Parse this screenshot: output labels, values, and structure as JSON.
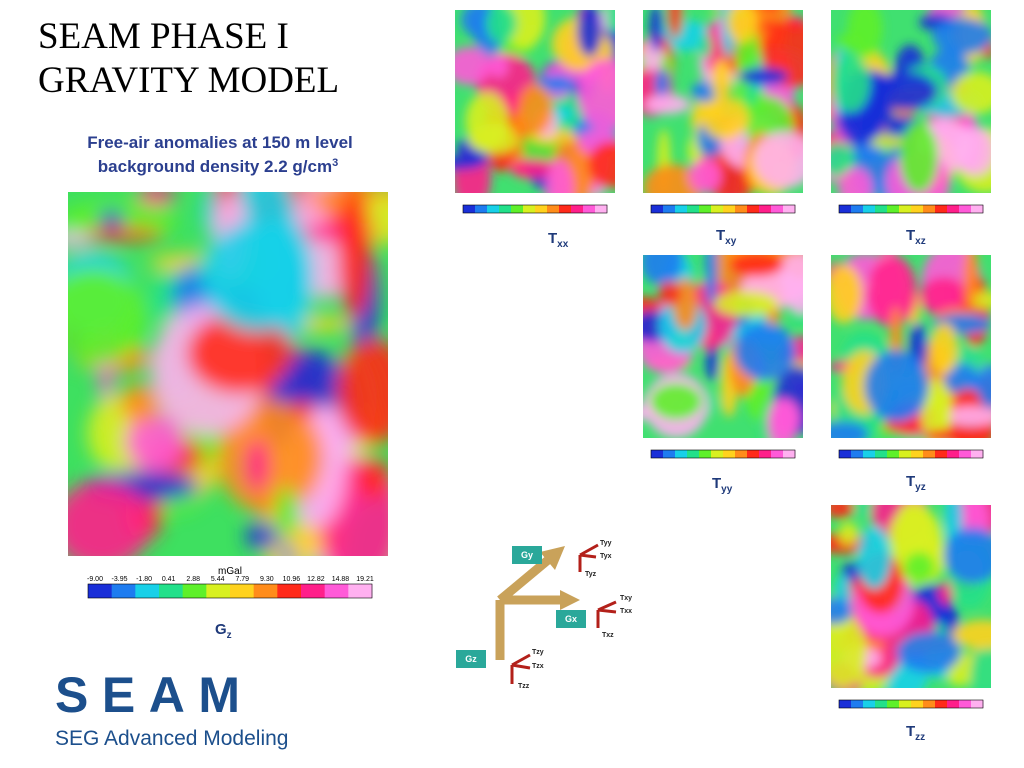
{
  "header": {
    "title_lines": [
      "SEAM PHASE I",
      "GRAVITY MODEL"
    ],
    "subtitle_line1": "Free-air anomalies at 150 m level",
    "subtitle_line2": {
      "text": "background density 2.2 g/cm",
      "sup": "3"
    }
  },
  "gz_map": {
    "unit": "mGal",
    "colorbar_ticks": [
      "-9.00",
      "-3.95",
      "-1.80",
      "0.41",
      "2.88",
      "5.44",
      "7.79",
      "9.30",
      "10.96",
      "12.82",
      "14.88",
      "19.21"
    ],
    "label": {
      "main": "G",
      "sub": "z"
    }
  },
  "tensor_maps": [
    {
      "main": "T",
      "sub": "xx"
    },
    {
      "main": "T",
      "sub": "xy"
    },
    {
      "main": "T",
      "sub": "xz"
    },
    {
      "main": "T",
      "sub": "yy"
    },
    {
      "main": "T",
      "sub": "yz"
    },
    {
      "main": "T",
      "sub": "zz"
    }
  ],
  "diagram": {
    "boxes": [
      "Gy",
      "Gx",
      "Gz"
    ],
    "labels": [
      "Tyy",
      "Tyx",
      "Tyz",
      "Txy",
      "Txx",
      "Txz",
      "Tzy",
      "Tzx",
      "Tzz"
    ]
  },
  "logo": {
    "name": "SEAM",
    "tagline": "SEG Advanced Modeling"
  }
}
